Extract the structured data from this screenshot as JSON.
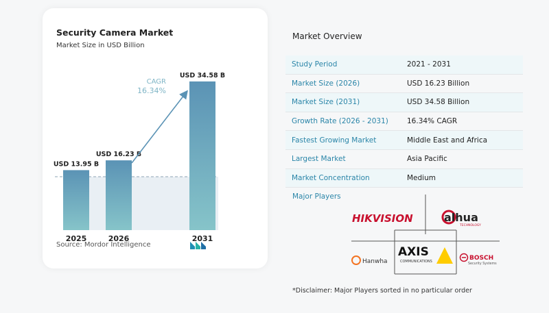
{
  "chart_data": {
    "type": "bar",
    "title": "Security Camera Market",
    "subtitle": "Market Size in USD Billion",
    "categories": [
      "2025",
      "2026",
      "2031"
    ],
    "values": [
      13.95,
      16.23,
      34.58
    ],
    "value_labels": [
      "USD 13.95 B",
      "USD 16.23 B",
      "USD 34.58 B"
    ],
    "cagr_label": "CAGR",
    "cagr_value": "16.34%",
    "ylim": [
      0,
      36
    ],
    "colors": {
      "bar_top": "#5b93b5",
      "bar_bottom": "#86c4c9",
      "cagr_text": "#7fb5c6",
      "arrow": "#5b93b5"
    }
  },
  "source": "Source: Mordor Intelligence",
  "overview": {
    "title": "Market Overview",
    "rows": [
      {
        "key": "Study Period",
        "value": "2021 - 2031"
      },
      {
        "key": "Market Size (2026)",
        "value": "USD 16.23 Billion"
      },
      {
        "key": "Market Size (2031)",
        "value": "USD 34.58 Billion"
      },
      {
        "key": "Growth Rate (2026 - 2031)",
        "value": "16.34% CAGR"
      },
      {
        "key": "Fastest Growing Market",
        "value": "Middle East and Africa"
      },
      {
        "key": "Largest Market",
        "value": "Asia Pacific"
      },
      {
        "key": "Market Concentration",
        "value": "Medium"
      }
    ]
  },
  "players": {
    "title": "Major Players",
    "logos": {
      "hikvision": "HIKVISION",
      "dahua": "alhua",
      "dahua_sub": "TECHNOLOGY",
      "axis": "AXIS",
      "axis_sub": "COMMUNICATIONS",
      "hanwha": "Hanwha",
      "bosch": "BOSCH",
      "bosch_sub": "Security Systems"
    }
  },
  "disclaimer": "*Disclaimer: Major Players sorted in no particular order"
}
